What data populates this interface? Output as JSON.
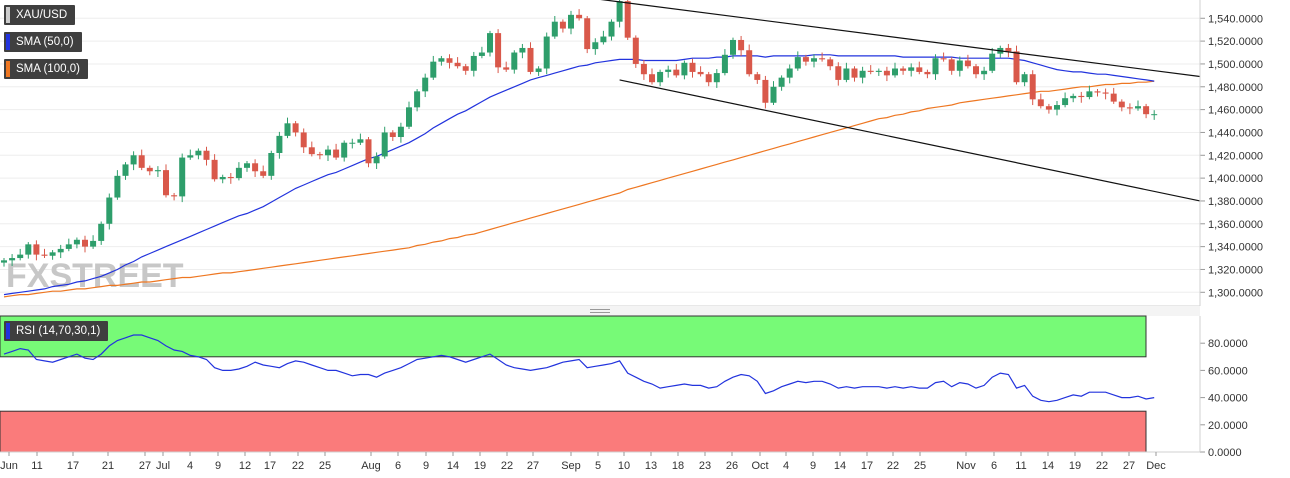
{
  "legend": {
    "symbol": "XAU/USD",
    "sma50": "SMA (50,0)",
    "sma100": "SMA (100,0)",
    "rsi": "RSI (14,70,30,1)"
  },
  "colors": {
    "candle_up": "#2e9e6b",
    "candle_down": "#d9584a",
    "sma50": "#2233dd",
    "sma100": "#ee7722",
    "rsi_line": "#2233dd",
    "rsi_overbought_zone": "#77fa77",
    "rsi_oversold_zone": "#fa7b7b"
  },
  "watermark": "FXSTREET",
  "chart_data": [
    {
      "type": "candlestick",
      "title": "XAU/USD",
      "ylim": [
        1288,
        1556
      ],
      "yticks": [
        "1,300.0000",
        "1,320.0000",
        "1,340.0000",
        "1,360.0000",
        "1,380.0000",
        "1,400.0000",
        "1,420.0000",
        "1,440.0000",
        "1,460.0000",
        "1,480.0000",
        "1,500.0000",
        "1,520.0000",
        "1,540.0000"
      ],
      "ytick_values": [
        1300,
        1320,
        1340,
        1360,
        1380,
        1400,
        1420,
        1440,
        1460,
        1480,
        1500,
        1520,
        1540
      ],
      "xticks": [
        "Jun",
        "11",
        "17",
        "21",
        "27",
        "Jul",
        "4",
        "9",
        "12",
        "17",
        "22",
        "25",
        "Aug",
        "6",
        "9",
        "14",
        "19",
        "22",
        "27",
        "Sep",
        "5",
        "10",
        "13",
        "18",
        "23",
        "26",
        "Oct",
        "4",
        "9",
        "14",
        "17",
        "22",
        "25",
        "Nov",
        "6",
        "11",
        "14",
        "19",
        "22",
        "27",
        "Dec"
      ],
      "closes": [
        1328,
        1330,
        1333,
        1342,
        1333,
        1332,
        1335,
        1338,
        1342,
        1346,
        1340,
        1345,
        1360,
        1383,
        1402,
        1412,
        1420,
        1409,
        1406,
        1407,
        1385,
        1384,
        1418,
        1420,
        1424,
        1416,
        1399,
        1401,
        1400,
        1409,
        1413,
        1406,
        1402,
        1422,
        1437,
        1448,
        1440,
        1427,
        1421,
        1420,
        1425,
        1418,
        1431,
        1431,
        1434,
        1413,
        1419,
        1440,
        1436,
        1445,
        1462,
        1476,
        1488,
        1502,
        1505,
        1501,
        1498,
        1494,
        1507,
        1510,
        1527,
        1497,
        1495,
        1510,
        1514,
        1493,
        1496,
        1524,
        1537,
        1531,
        1543,
        1540,
        1513,
        1519,
        1524,
        1537,
        1555,
        1523,
        1500,
        1491,
        1484,
        1493,
        1495,
        1490,
        1501,
        1493,
        1491,
        1484,
        1492,
        1508,
        1521,
        1512,
        1491,
        1486,
        1466,
        1480,
        1488,
        1496,
        1506,
        1502,
        1505,
        1504,
        1498,
        1486,
        1496,
        1488,
        1494,
        1493,
        1494,
        1490,
        1496,
        1494,
        1497,
        1493,
        1491,
        1505,
        1504,
        1494,
        1503,
        1498,
        1491,
        1494,
        1509,
        1514,
        1511,
        1484,
        1491,
        1469,
        1463,
        1460,
        1464,
        1470,
        1472,
        1471,
        1476,
        1475,
        1474,
        1467,
        1462,
        1461,
        1463,
        1456,
        1456
      ],
      "sma50": [
        1298,
        1299,
        1300,
        1301,
        1302,
        1303,
        1305,
        1306,
        1307,
        1309,
        1310,
        1312,
        1314,
        1317,
        1320,
        1324,
        1327,
        1331,
        1334,
        1337,
        1340,
        1343,
        1346,
        1349,
        1352,
        1355,
        1358,
        1361,
        1364,
        1367,
        1369,
        1372,
        1375,
        1379,
        1383,
        1387,
        1391,
        1394,
        1397,
        1400,
        1403,
        1405,
        1408,
        1411,
        1414,
        1417,
        1419,
        1422,
        1425,
        1428,
        1431,
        1435,
        1439,
        1444,
        1448,
        1452,
        1456,
        1459,
        1463,
        1467,
        1471,
        1474,
        1477,
        1480,
        1483,
        1486,
        1488,
        1490,
        1492,
        1494,
        1496,
        1498,
        1499,
        1501,
        1502,
        1503,
        1504,
        1504,
        1504,
        1503,
        1503,
        1503,
        1503,
        1503,
        1504,
        1505,
        1505,
        1505,
        1506,
        1506,
        1507,
        1507,
        1507,
        1507,
        1506,
        1507,
        1507,
        1507,
        1507,
        1507,
        1508,
        1508,
        1508,
        1507,
        1507,
        1507,
        1507,
        1507,
        1507,
        1507,
        1507,
        1506,
        1506,
        1506,
        1506,
        1506,
        1506,
        1506,
        1505,
        1505,
        1505,
        1505,
        1505,
        1505,
        1505,
        1504,
        1503,
        1501,
        1499,
        1497,
        1495,
        1494,
        1493,
        1493,
        1492,
        1491,
        1491,
        1490,
        1489,
        1488,
        1487,
        1486,
        1485
      ],
      "sma100": [
        1296,
        1297,
        1298,
        1298,
        1299,
        1300,
        1301,
        1301,
        1302,
        1303,
        1303,
        1304,
        1305,
        1306,
        1306,
        1307,
        1308,
        1309,
        1309,
        1310,
        1311,
        1312,
        1313,
        1313,
        1314,
        1315,
        1316,
        1317,
        1317,
        1318,
        1319,
        1320,
        1321,
        1322,
        1323,
        1324,
        1325,
        1326,
        1327,
        1328,
        1329,
        1330,
        1331,
        1332,
        1333,
        1334,
        1335,
        1336,
        1337,
        1338,
        1339,
        1341,
        1342,
        1344,
        1345,
        1347,
        1348,
        1350,
        1351,
        1353,
        1355,
        1357,
        1359,
        1361,
        1363,
        1365,
        1367,
        1369,
        1371,
        1373,
        1375,
        1377,
        1379,
        1381,
        1383,
        1385,
        1387,
        1390,
        1392,
        1394,
        1396,
        1398,
        1400,
        1402,
        1404,
        1406,
        1408,
        1410,
        1412,
        1414,
        1416,
        1418,
        1420,
        1422,
        1424,
        1426,
        1428,
        1430,
        1432,
        1434,
        1436,
        1438,
        1440,
        1442,
        1444,
        1446,
        1448,
        1450,
        1452,
        1453,
        1455,
        1456,
        1458,
        1459,
        1461,
        1462,
        1463,
        1464,
        1466,
        1467,
        1468,
        1469,
        1470,
        1471,
        1472,
        1473,
        1474,
        1475,
        1476,
        1476,
        1477,
        1478,
        1479,
        1480,
        1480,
        1481,
        1482,
        1482,
        1483,
        1483,
        1484,
        1484,
        1485
      ],
      "trendlines": [
        {
          "name": "upper",
          "from": [
            1558,
            "Sep 5"
          ],
          "to": [
            1489,
            "Dec 1"
          ]
        },
        {
          "name": "lower",
          "from": [
            1486,
            "Sep 9"
          ],
          "to": [
            1380,
            "Dec 1"
          ]
        }
      ]
    },
    {
      "type": "line",
      "title": "RSI (14,70,30,1)",
      "ylim": [
        0,
        100
      ],
      "yticks": [
        "0.0000",
        "20.0000",
        "40.0000",
        "60.0000",
        "80.0000"
      ],
      "ytick_values": [
        0,
        20,
        40,
        60,
        80
      ],
      "zones": [
        {
          "name": "overbought",
          "from": 70,
          "to": 100
        },
        {
          "name": "oversold",
          "from": 0,
          "to": 30
        }
      ],
      "values": [
        72,
        74,
        76,
        75,
        68,
        67,
        66,
        68,
        70,
        72,
        69,
        68,
        72,
        78,
        82,
        84,
        86,
        86,
        84,
        82,
        78,
        75,
        74,
        71,
        70,
        68,
        62,
        60,
        60,
        61,
        63,
        66,
        64,
        63,
        62,
        65,
        67,
        66,
        64,
        62,
        60,
        60,
        58,
        56,
        57,
        57,
        55,
        58,
        60,
        62,
        65,
        68,
        69,
        70,
        71,
        70,
        68,
        66,
        68,
        70,
        72,
        68,
        64,
        62,
        61,
        60,
        61,
        62,
        64,
        66,
        67,
        68,
        62,
        63,
        64,
        65,
        67,
        58,
        55,
        52,
        50,
        47,
        48,
        49,
        50,
        49,
        49,
        47,
        48,
        52,
        55,
        57,
        56,
        52,
        43,
        45,
        48,
        50,
        52,
        51,
        52,
        52,
        50,
        47,
        48,
        47,
        48,
        48,
        48,
        47,
        48,
        47,
        48,
        47,
        47,
        51,
        52,
        48,
        51,
        50,
        47,
        49,
        55,
        58,
        57,
        47,
        49,
        41,
        38,
        37,
        38,
        40,
        42,
        41,
        44,
        44,
        44,
        42,
        40,
        40,
        41,
        39,
        40
      ]
    }
  ]
}
